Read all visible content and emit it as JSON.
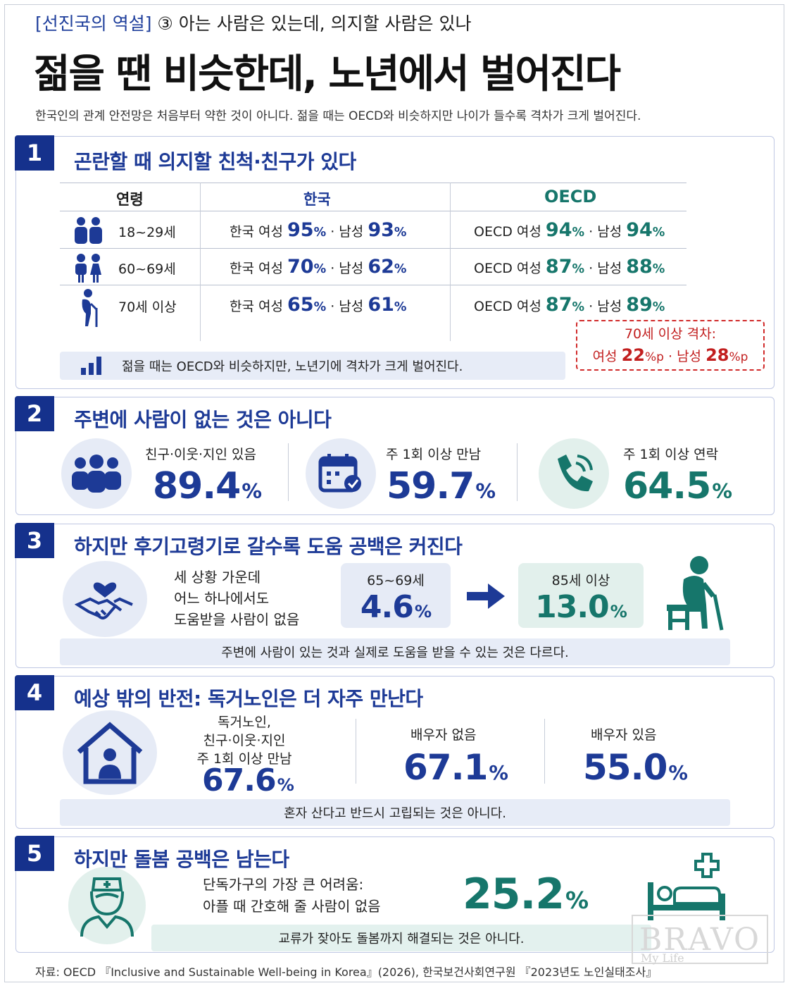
{
  "header": {
    "kicker_bracket": "[선진국의 역설]",
    "kicker_rest": "③ 아는 사람은 있는데, 의지할 사람은 있나",
    "headline": "젊을 땐 비슷한데, 노년에서 벌어진다",
    "lede": "한국인의 관계 안전망은 처음부터 약한 것이 아니다. 젊을 때는 OECD와 비슷하지만 나이가 들수록 격차가 크게 벌어진다."
  },
  "s1": {
    "num": "1",
    "title": "곤란할 때 의지할 친척·친구가 있다",
    "headers": {
      "age": "연령",
      "korea": "한국",
      "oecd": "OECD"
    },
    "rows": [
      {
        "age": "18~29세",
        "kr_f_label": "한국 여성",
        "kr_f": "95",
        "kr_m_label": "· 남성",
        "kr_m": "93",
        "oe_f_label": "OECD 여성",
        "oe_f": "94",
        "oe_m_label": "· 남성",
        "oe_m": "94"
      },
      {
        "age": "60~69세",
        "kr_f_label": "한국 여성",
        "kr_f": "70",
        "kr_m_label": "· 남성",
        "kr_m": "62",
        "oe_f_label": "OECD 여성",
        "oe_f": "87",
        "oe_m_label": "· 남성",
        "oe_m": "88"
      },
      {
        "age": "70세 이상",
        "kr_f_label": "한국 여성",
        "kr_f": "65",
        "kr_m_label": "· 남성",
        "kr_m": "61",
        "oe_f_label": "OECD 여성",
        "oe_f": "87",
        "oe_m_label": "· 남성",
        "oe_m": "89"
      }
    ],
    "pct": "%",
    "gap": {
      "line1": "70세 이상 격차:",
      "f_label": "여성",
      "f": "22",
      "m_label": "· 남성",
      "m": "28",
      "unit": "%p"
    },
    "note": "젊을 때는 OECD와 비슷하지만, 노년기에 격차가 크게 벌어진다."
  },
  "s2": {
    "num": "2",
    "title": "주변에 사람이 없는 것은 아니다",
    "stats": [
      {
        "label": "친구·이웃·지인 있음",
        "value": "89.4"
      },
      {
        "label": "주 1회 이상 만남",
        "value": "59.7"
      },
      {
        "label": "주 1회 이상 연락",
        "value": "64.5"
      }
    ],
    "pct": "%"
  },
  "s3": {
    "num": "3",
    "title": "하지만 후기고령기로 갈수록 도움 공백은 커진다",
    "desc": [
      "세 상황 가운데",
      "어느 하나에서도",
      "도움받을 사람이 없음"
    ],
    "young_label": "65~69세",
    "young_value": "4.6",
    "old_label": "85세 이상",
    "old_value": "13.0",
    "pct": "%",
    "note": "주변에 사람이 있는 것과 실제로 도움을 받을 수 있는 것은 다르다."
  },
  "s4": {
    "num": "4",
    "title": "예상 밖의 반전: 독거노인은 더 자주 만난다",
    "alone_lines": [
      "독거노인,",
      "친구·이웃·지인",
      "주 1회 이상 만남"
    ],
    "alone_value": "67.6",
    "nospouse_label": "배우자 없음",
    "nospouse_value": "67.1",
    "spouse_label": "배우자 있음",
    "spouse_value": "55.0",
    "pct": "%",
    "note": "혼자 산다고 반드시 고립되는 것은 아니다."
  },
  "s5": {
    "num": "5",
    "title": "하지만 돌봄 공백은 남는다",
    "desc": [
      "단독가구의 가장 큰 어려움:",
      "아플 때 간호해 줄 사람이 없음"
    ],
    "value": "25.2",
    "pct": "%",
    "note": "교류가 잦아도 돌봄까지 해결되는 것은 아니다."
  },
  "footer": "자료: OECD 『Inclusive and Sustainable Well-being in Korea』(2026), 한국보건사회연구원 『2023년도 노인실태조사』",
  "watermark": {
    "main": "BRAVO",
    "sub": "My Life"
  },
  "colors": {
    "navy": "#1d3a96",
    "teal": "#16766b",
    "red": "#c21f1f",
    "panel": "#e6ebf6"
  }
}
